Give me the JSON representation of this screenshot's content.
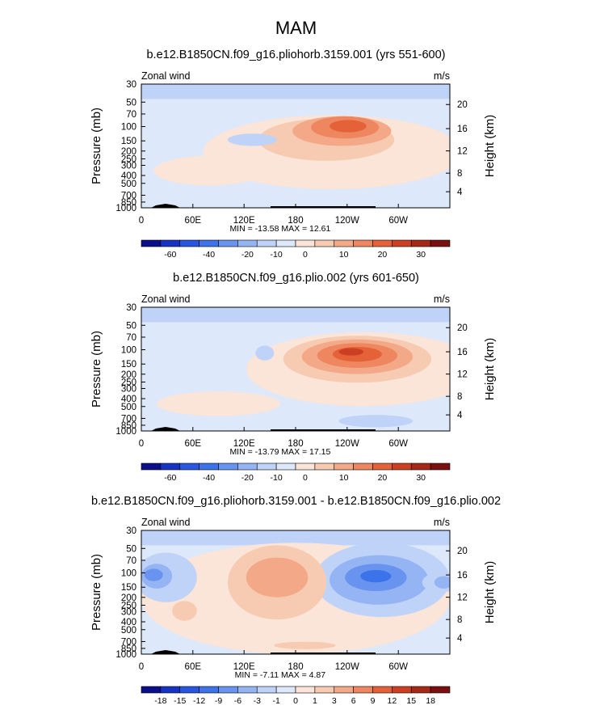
{
  "page_title": "MAM",
  "colors": {
    "levels_std": [
      "#0b0f8c",
      "#1733c4",
      "#2856e0",
      "#3d73ea",
      "#6893ef",
      "#95b4f4",
      "#bfd2f8",
      "#dde8fb",
      "#fbe4d8",
      "#f7cbb2",
      "#f3a888",
      "#ee8660",
      "#e56238",
      "#cc3f22",
      "#a82818",
      "#7a1010"
    ],
    "land": "#000000"
  },
  "chart_data": [
    {
      "type": "heatmap",
      "title": "b.e12.B1850CN.f09_g16.pliohorb.3159.001 (yrs 551-600)",
      "left_label": "Zonal wind",
      "right_label": "m/s",
      "ylabel": "Pressure (mb)",
      "y2label": "Height (km)",
      "xticks": [
        "0",
        "60E",
        "120E",
        "180",
        "120W",
        "60W"
      ],
      "yticks": [
        "30",
        "50",
        "70",
        "100",
        "150",
        "200",
        "250",
        "300",
        "400",
        "500",
        "700",
        "850",
        "1000"
      ],
      "y2ticks": [
        "20",
        "16",
        "12",
        "8",
        "4"
      ],
      "stats": "MIN = -13.58  MAX = 12.61",
      "min": -13.58,
      "max": 12.61,
      "colorbar_labels": [
        "-60",
        "-40",
        "-20",
        "-10",
        "0",
        "10",
        "20",
        "30"
      ]
    },
    {
      "type": "heatmap",
      "title": "b.e12.B1850CN.f09_g16.plio.002 (yrs 601-650)",
      "left_label": "Zonal wind",
      "right_label": "m/s",
      "ylabel": "Pressure (mb)",
      "y2label": "Height (km)",
      "xticks": [
        "0",
        "60E",
        "120E",
        "180",
        "120W",
        "60W"
      ],
      "yticks": [
        "30",
        "50",
        "70",
        "100",
        "150",
        "200",
        "250",
        "300",
        "400",
        "500",
        "700",
        "850",
        "1000"
      ],
      "y2ticks": [
        "20",
        "16",
        "12",
        "8",
        "4"
      ],
      "stats": "MIN = -13.79  MAX = 17.15",
      "min": -13.79,
      "max": 17.15,
      "colorbar_labels": [
        "-60",
        "-40",
        "-20",
        "-10",
        "0",
        "10",
        "20",
        "30"
      ]
    },
    {
      "type": "heatmap",
      "title": "b.e12.B1850CN.f09_g16.pliohorb.3159.001 - b.e12.B1850CN.f09_g16.plio.002",
      "left_label": "Zonal wind",
      "right_label": "m/s",
      "ylabel": "Pressure (mb)",
      "y2label": "Height (km)",
      "xticks": [
        "0",
        "60E",
        "120E",
        "180",
        "120W",
        "60W"
      ],
      "yticks": [
        "30",
        "50",
        "70",
        "100",
        "150",
        "200",
        "250",
        "300",
        "400",
        "500",
        "700",
        "850",
        "1000"
      ],
      "y2ticks": [
        "20",
        "16",
        "12",
        "8",
        "4"
      ],
      "stats": "MIN = -7.11  MAX = 4.87",
      "min": -7.11,
      "max": 4.87,
      "colorbar_labels": [
        "-18",
        "-15",
        "-12",
        "-9",
        "-6",
        "-3",
        "-1",
        "0",
        "1",
        "3",
        "6",
        "9",
        "12",
        "15",
        "18"
      ]
    }
  ]
}
